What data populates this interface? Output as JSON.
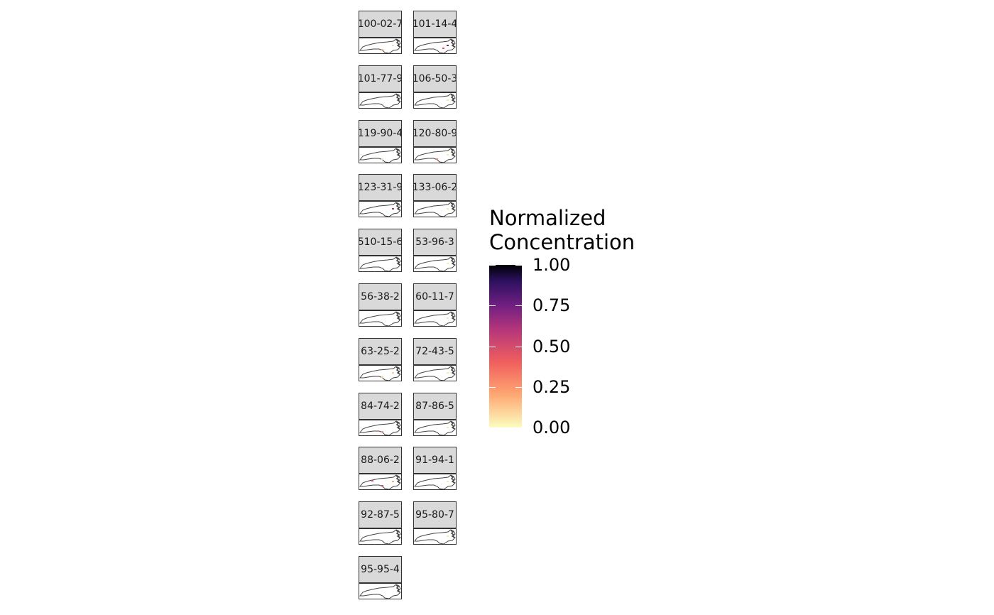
{
  "facets": [
    {
      "label": "100-02-7",
      "dots": [
        {
          "site": "sandhills",
          "value": 0.18
        },
        {
          "site": "coastal",
          "value": 0.08
        }
      ]
    },
    {
      "label": "101-14-4",
      "dots": [
        {
          "site": "coastal",
          "value": 0.72
        },
        {
          "site": "coastal-south",
          "value": 0.45
        }
      ]
    },
    {
      "label": "101-77-9",
      "dots": []
    },
    {
      "label": "106-50-3",
      "dots": [
        {
          "site": "coastal",
          "value": 0.06
        }
      ]
    },
    {
      "label": "119-90-4",
      "dots": [
        {
          "site": "sandhills",
          "value": 0.05
        }
      ]
    },
    {
      "label": "120-80-9",
      "dots": [
        {
          "site": "sandhills",
          "value": 0.3
        },
        {
          "site": "coastal",
          "value": 0.05
        }
      ]
    },
    {
      "label": "123-31-9",
      "dots": [
        {
          "site": "coastal",
          "value": 0.62
        }
      ]
    },
    {
      "label": "133-06-2",
      "dots": [
        {
          "site": "coastal",
          "value": 0.05
        }
      ]
    },
    {
      "label": "510-15-6",
      "dots": []
    },
    {
      "label": "53-96-3",
      "dots": [
        {
          "site": "coastal",
          "value": 0.04
        }
      ]
    },
    {
      "label": "56-38-2",
      "dots": []
    },
    {
      "label": "60-11-7",
      "dots": [
        {
          "site": "coastal",
          "value": 0.05
        }
      ]
    },
    {
      "label": "63-25-2",
      "dots": [
        {
          "site": "sandhills",
          "value": 0.1
        },
        {
          "site": "coastal",
          "value": 0.12
        }
      ]
    },
    {
      "label": "72-43-5",
      "dots": [
        {
          "site": "coastal",
          "value": 0.05
        }
      ]
    },
    {
      "label": "84-74-2",
      "dots": [
        {
          "site": "sandhills",
          "value": 0.25
        }
      ]
    },
    {
      "label": "87-86-5",
      "dots": [
        {
          "site": "coastal",
          "value": 0.05
        }
      ]
    },
    {
      "label": "88-06-2",
      "dots": [
        {
          "site": "west",
          "value": 0.45
        },
        {
          "site": "sandhills",
          "value": 0.5
        },
        {
          "site": "coastal",
          "value": 0.2
        }
      ]
    },
    {
      "label": "91-94-1",
      "dots": [
        {
          "site": "coastal",
          "value": 0.05
        }
      ]
    },
    {
      "label": "92-87-5",
      "dots": []
    },
    {
      "label": "95-80-7",
      "dots": [
        {
          "site": "coastal",
          "value": 0.05
        }
      ]
    },
    {
      "label": "95-95-4",
      "dots": []
    }
  ],
  "legend": {
    "title_line1": "Normalized",
    "title_line2": "Concentration",
    "breaks": [
      {
        "value": 1.0,
        "label": "1.00"
      },
      {
        "value": 0.75,
        "label": "0.75"
      },
      {
        "value": 0.5,
        "label": "0.50"
      },
      {
        "value": 0.25,
        "label": "0.25"
      },
      {
        "value": 0.0,
        "label": "0.00"
      }
    ],
    "range": [
      0,
      1
    ],
    "palette": [
      "#fcfdbf",
      "#fea873",
      "#f1605d",
      "#b5367a",
      "#721f81",
      "#2d1160",
      "#000004"
    ]
  },
  "colors": {
    "strip_fill": "#d9d9d9",
    "panel_border": "#333333",
    "map_outline": "#444444"
  }
}
